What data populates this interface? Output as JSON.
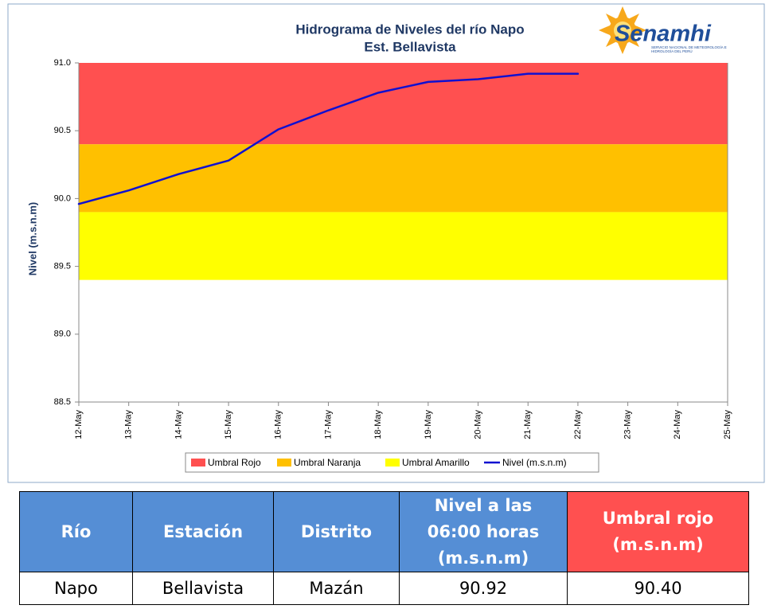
{
  "chart_data": {
    "type": "line",
    "title": "Hidrograma de Niveles del río Napo",
    "subtitle": "Est. Bellavista",
    "y_label": "Nivel (m.s.n.m)",
    "categories": [
      "12-May",
      "13-May",
      "14-May",
      "15-May",
      "16-May",
      "17-May",
      "18-May",
      "19-May",
      "20-May",
      "21-May",
      "22-May",
      "23-May",
      "24-May",
      "25-May"
    ],
    "bands": [
      {
        "name": "Umbral Rojo",
        "color": "#ff5050",
        "range": [
          90.4,
          91.0
        ]
      },
      {
        "name": "Umbral Naranja",
        "color": "#ffc000",
        "range": [
          89.9,
          90.4
        ]
      },
      {
        "name": "Umbral Amarillo",
        "color": "#ffff00",
        "range": [
          89.4,
          89.9
        ]
      }
    ],
    "series": [
      {
        "name": "Nivel (m.s.n.m)",
        "color": "#1010d0",
        "values": [
          89.96,
          90.06,
          90.18,
          90.28,
          90.51,
          90.65,
          90.78,
          90.86,
          90.88,
          90.92,
          90.92,
          null,
          null,
          null
        ]
      }
    ],
    "ylim": [
      88.5,
      91.0
    ],
    "yticks": [
      88.5,
      {
        "value": 89,
        "label": "89.0"
      },
      89.5,
      {
        "value": 90,
        "label": "90.0"
      },
      90.5,
      {
        "value": 91,
        "label": "91.0"
      }
    ],
    "legend": "bottom"
  },
  "logo": {
    "name": "Senamhi",
    "tagline": "SERVICIO NACIONAL DE METEOROLOGÍA E HIDROLOGÍA DEL PERÚ"
  },
  "table": {
    "headers": [
      "Río",
      "Estación",
      "Distrito",
      "Nivel a las 06:00 horas (m.s.n.m)",
      "Umbral rojo (m.s.n.m)"
    ],
    "rows": [
      [
        "Napo",
        "Bellavista",
        "Mazán",
        "90.92",
        "90.40"
      ]
    ]
  }
}
